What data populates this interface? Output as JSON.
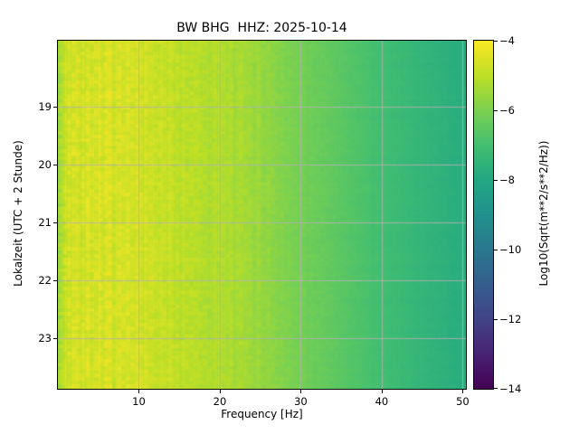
{
  "chart_data": {
    "type": "heatmap",
    "title": "BW BHG  HHZ: 2025-10-14",
    "xlabel": "Frequency [Hz]",
    "ylabel": "Lokalzeit (UTC + 2 Stunde)",
    "x_ticks": [
      10,
      20,
      30,
      40,
      50
    ],
    "x_tick_labels": [
      "10",
      "20",
      "30",
      "40",
      "50"
    ],
    "y_ticks": [
      19,
      20,
      21,
      22,
      23
    ],
    "y_tick_labels": [
      "19",
      "20",
      "21",
      "22",
      "23"
    ],
    "x_range": [
      0,
      50.4
    ],
    "y_range": [
      17.87,
      23.87
    ],
    "grid": true,
    "grid_color": "#b2b2b2",
    "colormap": "viridis",
    "colormap_stops": [
      [
        0.0,
        "#440154"
      ],
      [
        0.1,
        "#482374"
      ],
      [
        0.2,
        "#414487"
      ],
      [
        0.3,
        "#355f8d"
      ],
      [
        0.4,
        "#2a788e"
      ],
      [
        0.5,
        "#21918c"
      ],
      [
        0.6,
        "#22a884"
      ],
      [
        0.7,
        "#44bf70"
      ],
      [
        0.8,
        "#7ad151"
      ],
      [
        0.9,
        "#bddf26"
      ],
      [
        1.0,
        "#fde725"
      ]
    ],
    "colorbar": {
      "label": "Log10(Sqrt(m**2/s**2/Hz))",
      "tick_values": [
        -4,
        -6,
        -8,
        -10,
        -12,
        -14
      ],
      "tick_labels": [
        "−4",
        "−6",
        "−8",
        "−10",
        "−12",
        "−14"
      ],
      "vmin": -14,
      "vmax": -4
    },
    "spectrum_profile": {
      "frequency_hz": [
        0,
        0.7,
        2,
        5,
        10,
        15,
        20,
        25,
        30,
        35,
        40,
        45,
        50.4
      ],
      "log10_value": [
        -5.6,
        -4.9,
        -4.55,
        -4.55,
        -4.7,
        -4.95,
        -5.2,
        -5.55,
        -6.1,
        -6.6,
        -7.05,
        -7.45,
        -7.8
      ]
    },
    "texture": {
      "seed": 42,
      "stripe_amplitude": 0.38,
      "cell_amplitude": 0.22,
      "row_amplitude": 0.08
    }
  }
}
